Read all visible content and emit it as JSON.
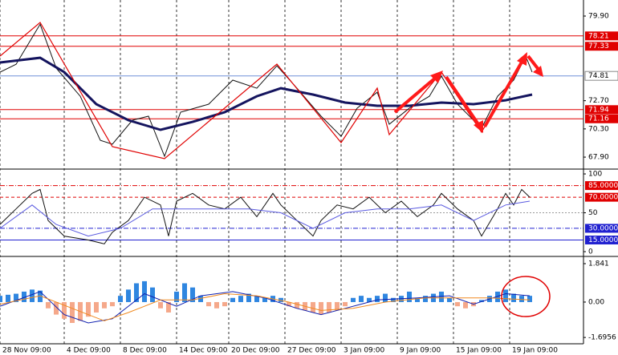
{
  "chart_data": [
    {
      "type": "line",
      "xlim": [
        0,
        145.4
      ],
      "xticks": [
        {
          "value": 0,
          "label": "28 Nov 09:00"
        },
        {
          "value": 16,
          "label": "4 Dec 09:00"
        },
        {
          "value": 30,
          "label": "8 Dec 09:00"
        },
        {
          "value": 44,
          "label": "14 Dec 09:00"
        },
        {
          "value": 57,
          "label": "20 Dec 09:00"
        },
        {
          "value": 71,
          "label": "27 Dec 09:00"
        },
        {
          "value": 85,
          "label": "3 Jan 09:00"
        },
        {
          "value": 99,
          "label": "9 Jan 09:00"
        },
        {
          "value": 113,
          "label": "15 Jan 09:00"
        },
        {
          "value": 127,
          "label": "19 Jan 09:00"
        }
      ],
      "ylim": [
        66.95,
        81.06
      ],
      "yticks": [
        {
          "value": 79.9,
          "label": "79.90"
        },
        {
          "value": 72.7,
          "label": "72.70"
        },
        {
          "value": 70.3,
          "label": "70.30"
        },
        {
          "value": 67.9,
          "label": "67.90"
        }
      ],
      "levels": [
        {
          "value": 78.21,
          "color": "#e00000"
        },
        {
          "value": 77.33,
          "color": "#e00000"
        },
        {
          "value": 74.81,
          "color": "#6f8fd8"
        },
        {
          "value": 71.94,
          "color": "#e00000"
        },
        {
          "value": 71.16,
          "color": "#e00000"
        }
      ],
      "series": [
        {
          "color": "#111111",
          "x": [
            0,
            4,
            10,
            14,
            20,
            25,
            28,
            33,
            37,
            41,
            45,
            52,
            58,
            64,
            69,
            74,
            80,
            85,
            89,
            94,
            97,
            102,
            107,
            110,
            114,
            120,
            124,
            128,
            131,
            132.6
          ],
          "values": [
            75.13,
            75.8,
            79.2,
            75.47,
            73.08,
            69.33,
            69.0,
            71.04,
            71.38,
            67.97,
            71.72,
            72.4,
            74.45,
            73.76,
            75.67,
            73.76,
            71.38,
            69.67,
            72.06,
            73.42,
            70.7,
            72.06,
            73.08,
            74.79,
            72.4,
            70.36,
            73.08,
            74.45,
            76.49,
            75.13
          ]
        },
        {
          "color": "#14145e",
          "x": [
            0,
            10,
            16,
            24,
            32,
            40,
            48,
            56,
            64,
            70,
            78,
            86,
            94,
            102,
            110,
            118,
            126,
            132.6
          ],
          "values": [
            75.95,
            76.35,
            75.13,
            72.4,
            71.04,
            70.22,
            70.9,
            71.72,
            73.08,
            73.76,
            73.22,
            72.54,
            72.27,
            72.27,
            72.54,
            72.4,
            72.74,
            73.22
          ]
        }
      ]
    },
    {
      "type": "line",
      "ylim": [
        -4.1,
        105.2
      ],
      "yticks": [
        100,
        50,
        0
      ],
      "levels": [
        {
          "value": 85,
          "label": "85.0000",
          "color": "#e00000"
        },
        {
          "value": 70,
          "label": "70.0000",
          "color": "#e00000"
        },
        {
          "value": 30,
          "label": "30.0000",
          "color": "#2020d0"
        },
        {
          "value": 15,
          "label": "15.0000",
          "color": "#2020d0"
        }
      ],
      "series": [
        {
          "color": "#111111",
          "x": [
            0,
            4,
            8,
            10,
            12,
            16,
            22,
            26,
            28,
            32,
            36,
            40,
            42,
            44,
            48,
            52,
            56,
            60,
            64,
            68,
            70,
            74,
            78,
            80,
            84,
            88,
            92,
            96,
            100,
            104,
            108,
            110,
            114,
            118,
            120,
            124,
            126,
            128,
            130,
            132
          ],
          "values": [
            35,
            55,
            75,
            80,
            40,
            20,
            15,
            10,
            25,
            40,
            70,
            60,
            20,
            65,
            75,
            60,
            55,
            70,
            45,
            75,
            60,
            40,
            20,
            40,
            60,
            55,
            70,
            50,
            65,
            45,
            60,
            75,
            55,
            40,
            20,
            55,
            75,
            60,
            80,
            70
          ]
        },
        {
          "color": "#5a5ae0",
          "x": [
            0,
            8,
            14,
            22,
            30,
            38,
            46,
            54,
            62,
            70,
            78,
            86,
            94,
            102,
            110,
            118,
            126,
            132
          ],
          "values": [
            30,
            60,
            35,
            20,
            30,
            55,
            55,
            55,
            55,
            50,
            30,
            50,
            55,
            55,
            60,
            40,
            60,
            65
          ]
        }
      ]
    },
    {
      "type": "macd",
      "ylim": [
        -1.96,
        2.11
      ],
      "yticks": [
        1.841,
        {
          "value": 0,
          "label": "0.00"
        },
        -1.6956
      ],
      "up_color": "#2f86e0",
      "down_color": "#f5a88a",
      "histogram": {
        "x": [
          0,
          2,
          4,
          6,
          8,
          10,
          12,
          14,
          16,
          18,
          20,
          22,
          24,
          26,
          28,
          30,
          32,
          34,
          36,
          38,
          40,
          42,
          44,
          46,
          48,
          50,
          52,
          54,
          56,
          58,
          60,
          62,
          64,
          66,
          68,
          70,
          72,
          74,
          76,
          78,
          80,
          82,
          84,
          86,
          88,
          90,
          92,
          94,
          96,
          98,
          100,
          102,
          104,
          106,
          108,
          110,
          112,
          114,
          116,
          118,
          120,
          122,
          124,
          126,
          128,
          130,
          132
        ],
        "values": [
          0.3,
          0.35,
          0.4,
          0.5,
          0.6,
          0.55,
          -0.3,
          -0.6,
          -0.8,
          -1.0,
          -0.9,
          -0.7,
          -0.5,
          -0.3,
          -0.2,
          0.3,
          0.6,
          0.9,
          1.0,
          0.7,
          -0.3,
          -0.5,
          0.5,
          0.9,
          0.7,
          0.3,
          -0.2,
          -0.3,
          -0.2,
          0.2,
          0.3,
          0.4,
          0.3,
          0.2,
          0.3,
          0.2,
          -0.2,
          -0.3,
          -0.4,
          -0.5,
          -0.6,
          -0.5,
          -0.4,
          -0.2,
          0.2,
          0.3,
          0.2,
          0.3,
          0.4,
          0.2,
          0.3,
          0.5,
          0.2,
          0.3,
          0.4,
          0.5,
          0.2,
          -0.2,
          -0.3,
          -0.2,
          0.1,
          0.3,
          0.5,
          0.6,
          0.4,
          0.3,
          0.3
        ]
      },
      "series": [
        {
          "color": "#1020b0",
          "x": [
            0,
            10,
            16,
            22,
            28,
            36,
            44,
            50,
            58,
            66,
            74,
            80,
            86,
            94,
            104,
            112,
            118,
            126,
            132
          ],
          "values": [
            -0.2,
            0.5,
            -0.6,
            -1.0,
            -0.8,
            0.4,
            -0.2,
            0.3,
            0.5,
            0.2,
            -0.3,
            -0.6,
            -0.3,
            0.1,
            0.2,
            0.3,
            -0.1,
            0.4,
            0.3
          ]
        },
        {
          "color": "#f08a20",
          "x": [
            0,
            10,
            18,
            26,
            32,
            40,
            48,
            56,
            64,
            72,
            80,
            88,
            96,
            106,
            114,
            122,
            132
          ],
          "values": [
            -0.1,
            0.3,
            -0.3,
            -0.9,
            -0.5,
            0.1,
            0.1,
            0.4,
            0.3,
            0,
            -0.4,
            -0.3,
            0,
            0.2,
            0.2,
            0.2,
            0.1
          ]
        }
      ]
    }
  ]
}
